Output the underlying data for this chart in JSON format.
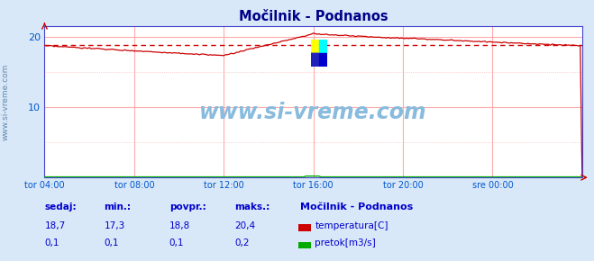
{
  "title": "Močilnik - Podnanos",
  "bg_color": "#d8e8f8",
  "plot_bg_color": "#ffffff",
  "grid_color": "#ffaaaa",
  "border_color": "#4444cc",
  "title_color": "#000088",
  "tick_label_color": "#0055cc",
  "watermark_text": "www.si-vreme.com",
  "watermark_color": "#88bbdd",
  "x_tick_labels": [
    "tor 04:00",
    "tor 08:00",
    "tor 12:00",
    "tor 16:00",
    "tor 20:00",
    "sre 00:00"
  ],
  "x_tick_positions": [
    0.0,
    0.1667,
    0.3333,
    0.5,
    0.6667,
    0.8333
  ],
  "y_ticks": [
    10,
    20
  ],
  "ylim": [
    0,
    21.5
  ],
  "xlim": [
    0,
    1
  ],
  "temp_avg": 18.8,
  "temp_color": "#cc0000",
  "flow_color": "#00aa00",
  "legend_title": "Močilnik - Podnanos",
  "legend_color": "#0000cc",
  "table_labels": [
    "sedaj:",
    "min.:",
    "povpr.:",
    "maks.:"
  ],
  "table_temp": [
    "18,7",
    "17,3",
    "18,8",
    "20,4"
  ],
  "table_flow": [
    "0,1",
    "0,1",
    "0,1",
    "0,2"
  ],
  "table_color": "#0000cc",
  "row1_label": "temperatura[C]",
  "row2_label": "pretok[m3/s]"
}
